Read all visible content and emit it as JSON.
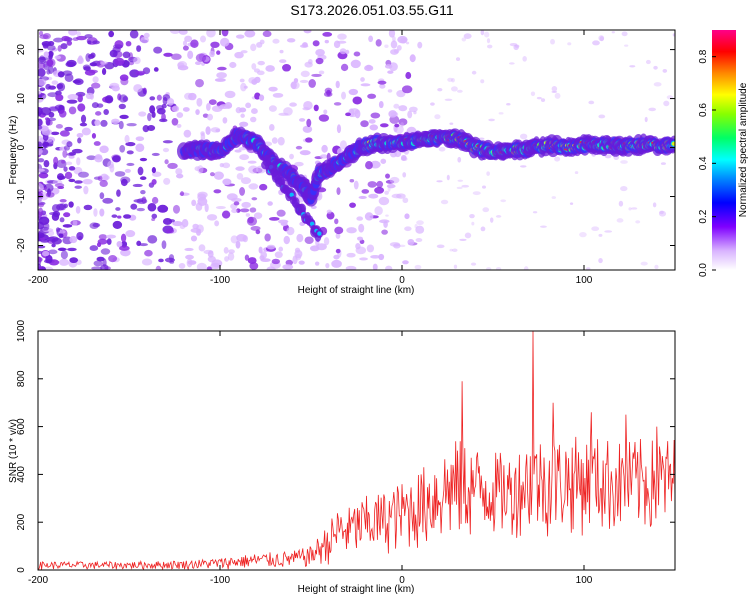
{
  "title": "S173.2026.051.03.55.G11",
  "chart_data": [
    {
      "type": "heatmap",
      "title": "",
      "xlabel": "Height of straight line (km)",
      "ylabel": "Frequency (Hz)",
      "xlim": [
        -200,
        150
      ],
      "ylim": [
        -25,
        24
      ],
      "xticks": [
        -200,
        -100,
        0,
        100
      ],
      "yticks": [
        -20,
        -10,
        0,
        10,
        20
      ],
      "colorbar": {
        "label": "Normalized spectral amplitude",
        "range": [
          0.0,
          0.9
        ],
        "ticks": [
          "0.0",
          "0.2",
          "0.4",
          "0.6",
          "0.8"
        ]
      },
      "ridge_frequency_track": {
        "x": [
          -100,
          -90,
          -80,
          -70,
          -60,
          -50,
          -45,
          -40,
          -30,
          -20,
          -10,
          0,
          10,
          20,
          30,
          40,
          50,
          60,
          70,
          80,
          90,
          100,
          110,
          120,
          130,
          140,
          150
        ],
        "y": [
          -0.5,
          2.5,
          1.0,
          -3.0,
          -6.0,
          -10.0,
          -5.0,
          -4.5,
          -1.5,
          0.5,
          1.0,
          1.0,
          1.5,
          2.0,
          2.0,
          0.0,
          -1.0,
          -0.5,
          -0.5,
          0.5,
          0.0,
          0.5,
          0.5,
          0.5,
          0.5,
          0.5,
          0.5
        ]
      }
    },
    {
      "type": "line",
      "title": "",
      "xlabel": "Height of straight line (km)",
      "ylabel": "SNR (10 * v/v)",
      "xlim": [
        -200,
        150
      ],
      "ylim": [
        0,
        1000
      ],
      "xticks": [
        -200,
        -100,
        0,
        100
      ],
      "yticks": [
        0,
        200,
        400,
        600,
        800,
        1000
      ],
      "series": [
        {
          "name": "SNR",
          "envelope_x": [
            -200,
            -150,
            -120,
            -100,
            -80,
            -60,
            -50,
            -40,
            -35,
            -30,
            -20,
            -10,
            0,
            10,
            20,
            30,
            40,
            50,
            60,
            70,
            80,
            90,
            100,
            110,
            120,
            130,
            140,
            150
          ],
          "envelope_max": [
            35,
            35,
            40,
            50,
            70,
            80,
            100,
            200,
            270,
            260,
            310,
            330,
            370,
            420,
            500,
            550,
            520,
            500,
            480,
            560,
            560,
            560,
            560,
            560,
            540,
            550,
            550,
            560
          ],
          "envelope_min": [
            2,
            2,
            2,
            2,
            5,
            5,
            10,
            20,
            30,
            40,
            50,
            60,
            70,
            80,
            90,
            100,
            120,
            130,
            130,
            140,
            130,
            140,
            140,
            140,
            140,
            140,
            140,
            140
          ],
          "peaks": [
            {
              "x": 33,
              "y": 790
            },
            {
              "x": 72,
              "y": 1000
            },
            {
              "x": 83,
              "y": 700
            },
            {
              "x": 104,
              "y": 660
            },
            {
              "x": 123,
              "y": 650
            },
            {
              "x": 140,
              "y": 600
            }
          ]
        }
      ]
    }
  ]
}
